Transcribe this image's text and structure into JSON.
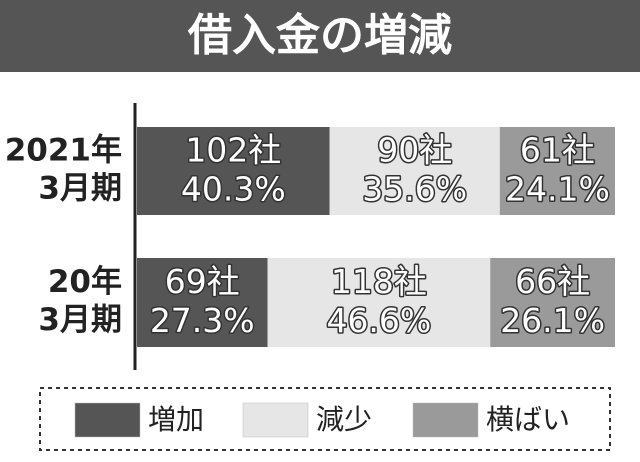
{
  "chart_data": {
    "type": "stacked_bar_h",
    "title": "借入金の増減",
    "categories": [
      [
        "2021年",
        "3月期"
      ],
      [
        "20年",
        "3月期"
      ]
    ],
    "xlim": [
      0,
      100
    ],
    "series": [
      {
        "name": "増加",
        "color": "#555555",
        "values": [
          40.3,
          27.3
        ],
        "value_labels": [
          "40.3%",
          "27.3%"
        ],
        "count_labels": [
          "102社",
          "69社"
        ]
      },
      {
        "name": "減少",
        "color": "#e6e6e6",
        "values": [
          35.6,
          46.6
        ],
        "value_labels": [
          "35.6%",
          "46.6%"
        ],
        "count_labels": [
          "90社",
          "118社"
        ]
      },
      {
        "name": "横ばい",
        "color": "#9a9a9a",
        "values": [
          24.1,
          26.1
        ],
        "value_labels": [
          "24.1%",
          "26.1%"
        ],
        "count_labels": [
          "61社",
          "66社"
        ]
      }
    ]
  }
}
